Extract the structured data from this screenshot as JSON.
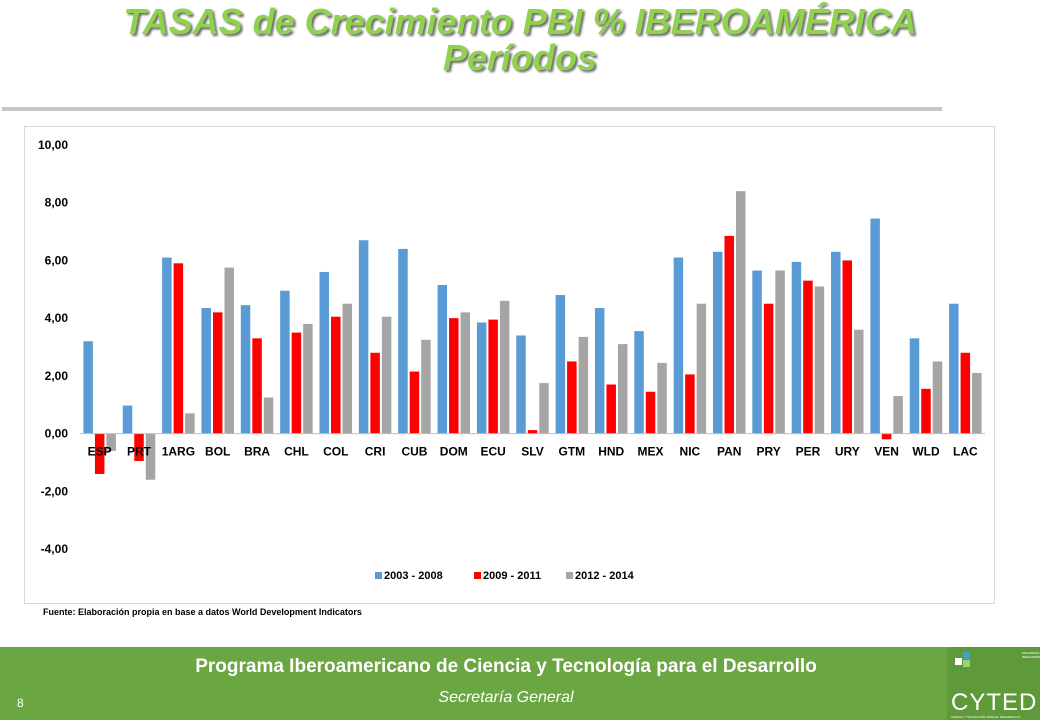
{
  "header": {
    "title_line1": "TASAS de Crecimiento PBI % IBEROAMÉRICA",
    "title_line2": "Períodos"
  },
  "source_note": "Fuente: Elaboración propia en base a datos World Development Indicators",
  "footer": {
    "title": "Programa Iberoamericano de Ciencia y Tecnología para el Desarrollo",
    "subtitle": "Secretaría General",
    "page_number": "8",
    "logo_text": "CYTED",
    "logo_small": "PROGRAMA IBEROAMERICANO",
    "logo_tagline": "CIENCIA Y TECNOLOGÍA PARA EL DESARROLLO"
  },
  "colors": {
    "title": "#92d050",
    "footer": "#6aa642",
    "series": [
      "#5b9bd5",
      "#ff0000",
      "#a5a5a5"
    ]
  },
  "chart_data": {
    "type": "bar",
    "categories": [
      "ESP",
      "PRT",
      "1ARG",
      "BOL",
      "BRA",
      "CHL",
      "COL",
      "CRI",
      "CUB",
      "DOM",
      "ECU",
      "SLV",
      "GTM",
      "HND",
      "MEX",
      "NIC",
      "PAN",
      "PRY",
      "PER",
      "URY",
      "VEN",
      "WLD",
      "LAC"
    ],
    "series": [
      {
        "name": "2003 - 2008",
        "values": [
          3.2,
          0.97,
          6.1,
          4.35,
          4.45,
          4.95,
          5.6,
          6.7,
          6.4,
          5.15,
          3.85,
          3.4,
          4.8,
          4.35,
          3.55,
          6.1,
          6.3,
          5.65,
          5.95,
          6.3,
          7.45,
          3.3,
          4.5
        ]
      },
      {
        "name": "2009 - 2011",
        "values": [
          -1.4,
          -0.95,
          5.9,
          4.2,
          3.3,
          3.5,
          4.05,
          2.8,
          2.15,
          4.0,
          3.95,
          0.12,
          2.5,
          1.7,
          1.45,
          2.05,
          6.85,
          4.5,
          5.3,
          6.0,
          -0.2,
          1.55,
          2.8
        ]
      },
      {
        "name": "2012 - 2014",
        "values": [
          -0.6,
          -1.6,
          0.7,
          5.75,
          1.25,
          3.8,
          4.5,
          4.05,
          3.25,
          4.2,
          4.6,
          1.75,
          3.35,
          3.1,
          2.45,
          4.5,
          8.4,
          5.65,
          5.1,
          3.6,
          1.3,
          2.5,
          2.1
        ]
      }
    ],
    "ylim": [
      -4,
      10
    ],
    "yticks": [
      "10,00",
      "8,00",
      "6,00",
      "4,00",
      "2,00",
      "0,00",
      "-2,00",
      "-4,00"
    ],
    "ytick_values": [
      10,
      8,
      6,
      4,
      2,
      0,
      -2,
      -4
    ],
    "grid": false,
    "legend": "bottom"
  }
}
